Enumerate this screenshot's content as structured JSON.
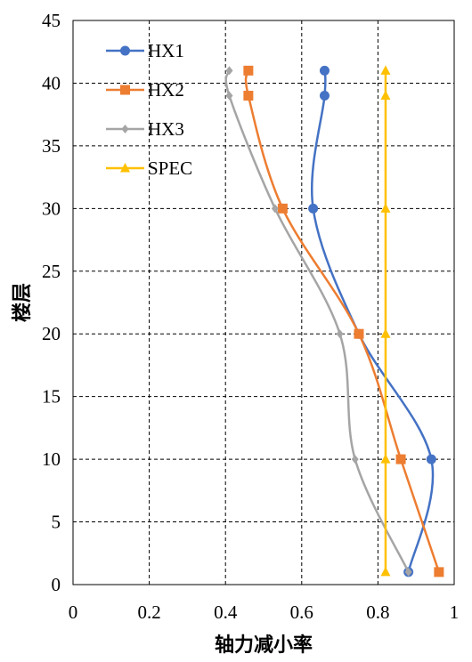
{
  "chart_data": {
    "type": "line",
    "title": "",
    "xlabel": "轴力减小率",
    "ylabel": "楼层",
    "xlim": [
      0,
      1
    ],
    "ylim": [
      0,
      45
    ],
    "x_ticks": [
      "0",
      "0.2",
      "0.4",
      "0.6",
      "0.8",
      "1"
    ],
    "y_ticks": [
      "0",
      "5",
      "10",
      "15",
      "20",
      "25",
      "30",
      "35",
      "40",
      "45"
    ],
    "grid": true,
    "legend_position": "top-left",
    "series": [
      {
        "name": "HX1",
        "color": "#4472C4",
        "marker": "circle",
        "points": [
          [
            0.88,
            1
          ],
          [
            0.94,
            10
          ],
          [
            0.75,
            20
          ],
          [
            0.63,
            30
          ],
          [
            0.66,
            39
          ],
          [
            0.66,
            41
          ]
        ]
      },
      {
        "name": "HX2",
        "color": "#ED7D31",
        "marker": "square",
        "points": [
          [
            0.96,
            1
          ],
          [
            0.86,
            10
          ],
          [
            0.75,
            20
          ],
          [
            0.55,
            30
          ],
          [
            0.46,
            39
          ],
          [
            0.46,
            41
          ]
        ]
      },
      {
        "name": "HX3",
        "color": "#A5A5A5",
        "marker": "diamond",
        "points": [
          [
            0.88,
            1
          ],
          [
            0.74,
            10
          ],
          [
            0.7,
            20
          ],
          [
            0.53,
            30
          ],
          [
            0.41,
            39
          ],
          [
            0.41,
            41
          ]
        ]
      },
      {
        "name": "SPEC",
        "color": "#FFC000",
        "marker": "triangle",
        "points": [
          [
            0.82,
            1
          ],
          [
            0.82,
            10
          ],
          [
            0.82,
            20
          ],
          [
            0.82,
            30
          ],
          [
            0.82,
            39
          ],
          [
            0.82,
            41
          ]
        ]
      }
    ]
  }
}
